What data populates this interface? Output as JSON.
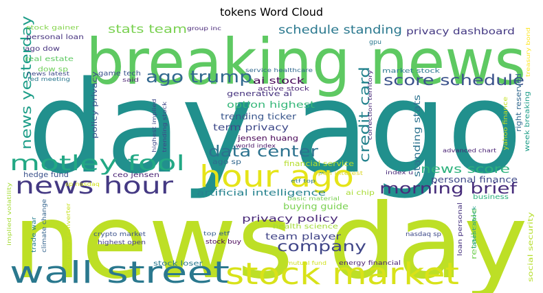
{
  "chart_data": {
    "type": "wordcloud",
    "title": "tokens Word Cloud",
    "colormap": "viridis",
    "background": "#ffffff",
    "words": [
      {
        "text": "news day",
        "weight": 1.0,
        "color": "#bddf26"
      },
      {
        "text": "day ago",
        "weight": 0.95,
        "color": "#21908d"
      },
      {
        "text": "breaking news",
        "weight": 0.62,
        "color": "#5ec962"
      },
      {
        "text": "wall street",
        "weight": 0.33,
        "color": "#2a788e"
      },
      {
        "text": "stock market",
        "weight": 0.33,
        "color": "#d8e219"
      },
      {
        "text": "hour ago",
        "weight": 0.33,
        "color": "#e5e419"
      },
      {
        "text": "news hour",
        "weight": 0.26,
        "color": "#443983"
      },
      {
        "text": "motley fool",
        "weight": 0.23,
        "color": "#22a884"
      },
      {
        "text": "ago trump",
        "weight": 0.18,
        "color": "#31688e"
      },
      {
        "text": "data center",
        "weight": 0.17,
        "color": "#2c728e"
      },
      {
        "text": "morning brief",
        "weight": 0.17,
        "color": "#472d7b"
      },
      {
        "text": "score schedule",
        "weight": 0.16,
        "color": "#3b528b"
      },
      {
        "text": "company",
        "weight": 0.16,
        "color": "#404688"
      },
      {
        "text": "credit card",
        "weight": 0.16,
        "color": "#25838e"
      },
      {
        "text": "news yesterday",
        "weight": 0.15,
        "color": "#1f9e89"
      },
      {
        "text": "stats team",
        "weight": 0.13,
        "color": "#7ad151"
      },
      {
        "text": "schedule standing",
        "weight": 0.13,
        "color": "#2a788e"
      },
      {
        "text": "news score",
        "weight": 0.13,
        "color": "#2db27d"
      },
      {
        "text": "right reserved",
        "weight": 0.07,
        "color": "#31688e"
      },
      {
        "text": "privacy dashboard",
        "weight": 0.1,
        "color": "#443983"
      },
      {
        "text": "privacy policy",
        "weight": 0.1,
        "color": "#482878"
      },
      {
        "text": "option highest",
        "weight": 0.09,
        "color": "#35b779"
      },
      {
        "text": "term privacy",
        "weight": 0.09,
        "color": "#3e4989"
      },
      {
        "text": "team player",
        "weight": 0.09,
        "color": "#414487"
      },
      {
        "text": "personal finance",
        "weight": 0.09,
        "color": "#3e4989"
      },
      {
        "text": "standing stats",
        "weight": 0.08,
        "color": "#2c728e"
      },
      {
        "text": "artificial intelligence",
        "weight": 0.08,
        "color": "#26828e"
      },
      {
        "text": "ai stock",
        "weight": 0.08,
        "color": "#440154"
      },
      {
        "text": "trending ticker",
        "weight": 0.07,
        "color": "#39568c"
      },
      {
        "text": "week breaking",
        "weight": 0.07,
        "color": "#1f9e89"
      },
      {
        "text": "retail sale",
        "weight": 0.07,
        "color": "#73d056"
      },
      {
        "text": "generative ai",
        "weight": 0.06,
        "color": "#46337e"
      },
      {
        "text": "buying guide",
        "weight": 0.06,
        "color": "#7ad151"
      },
      {
        "text": "jensen huang",
        "weight": 0.06,
        "color": "#440154"
      },
      {
        "text": "policy privacy",
        "weight": 0.05,
        "color": "#3b528b"
      },
      {
        "text": "yahoo finance",
        "weight": 0.05,
        "color": "#c2df23"
      },
      {
        "text": "social security",
        "weight": 0.05,
        "color": "#b5de2b"
      },
      {
        "text": "financial service",
        "weight": 0.05,
        "color": "#b5de2b"
      },
      {
        "text": "hedge fund",
        "weight": 0.05,
        "color": "#3b528b"
      },
      {
        "text": "loan personal",
        "weight": 0.05,
        "color": "#46327e"
      },
      {
        "text": "health science",
        "weight": 0.04,
        "color": "#a2da37"
      },
      {
        "text": "game tech",
        "weight": 0.04,
        "color": "#3b528b"
      },
      {
        "text": "ceo jensen",
        "weight": 0.04,
        "color": "#482173"
      },
      {
        "text": "real estate",
        "weight": 0.04,
        "color": "#5ec962"
      },
      {
        "text": "ago dow",
        "weight": 0.04,
        "color": "#46327e"
      },
      {
        "text": "dow sp",
        "weight": 0.04,
        "color": "#6ece58"
      },
      {
        "text": "stock gainer",
        "weight": 0.04,
        "color": "#84d44b"
      },
      {
        "text": "personal loan",
        "weight": 0.04,
        "color": "#46327e"
      },
      {
        "text": "active stock",
        "weight": 0.04,
        "color": "#482173"
      },
      {
        "text": "ago sp",
        "weight": 0.04,
        "color": "#31688e"
      },
      {
        "text": "stock loser",
        "weight": 0.04,
        "color": "#2a788e"
      },
      {
        "text": "crypto market",
        "weight": 0.04,
        "color": "#3b528b"
      },
      {
        "text": "highest open",
        "weight": 0.04,
        "color": "#433e85"
      },
      {
        "text": "climate change",
        "weight": 0.04,
        "color": "#33638d"
      },
      {
        "text": "trade war",
        "weight": 0.04,
        "color": "#277f8e"
      },
      {
        "text": "ai chip",
        "weight": 0.04,
        "color": "#a8db34"
      },
      {
        "text": "business",
        "weight": 0.04,
        "color": "#2db27d"
      },
      {
        "text": "energy financial",
        "weight": 0.04,
        "color": "#481f70"
      },
      {
        "text": "stock buy",
        "weight": 0.04,
        "color": "#440154"
      },
      {
        "text": "nasdaq sp",
        "weight": 0.03,
        "color": "#3e4989"
      },
      {
        "text": "market stock",
        "weight": 0.03,
        "color": "#2a788e"
      },
      {
        "text": "service healthcare",
        "weight": 0.03,
        "color": "#31688e"
      },
      {
        "text": "advanced chart",
        "weight": 0.03,
        "color": "#482173"
      },
      {
        "text": "latest stock",
        "weight": 0.03,
        "color": "#1f9e89"
      },
      {
        "text": "highest implied",
        "weight": 0.03,
        "color": "#3e4989"
      },
      {
        "text": "correction territory",
        "weight": 0.03,
        "color": "#482878"
      },
      {
        "text": "trending stock",
        "weight": 0.03,
        "color": "#3e4989"
      },
      {
        "text": "group inc",
        "weight": 0.03,
        "color": "#482878"
      },
      {
        "text": "treasury bond",
        "weight": 0.03,
        "color": "#fde725"
      },
      {
        "text": "news latest",
        "weight": 0.03,
        "color": "#3e4989"
      },
      {
        "text": "fed meeting",
        "weight": 0.03,
        "color": "#2a788e"
      },
      {
        "text": "implied volatility",
        "weight": 0.03,
        "color": "#a5db36"
      },
      {
        "text": "currency converter",
        "weight": 0.03,
        "color": "#c8e020"
      },
      {
        "text": "mutual fund",
        "weight": 0.03,
        "color": "#d0e11c"
      },
      {
        "text": "top etf",
        "weight": 0.03,
        "color": "#355f8d"
      },
      {
        "text": "basic material",
        "weight": 0.03,
        "color": "#7ad151"
      },
      {
        "text": "open interest",
        "weight": 0.03,
        "color": "#ddd82c"
      },
      {
        "text": "etf top",
        "weight": 0.03,
        "color": "#2a788e"
      },
      {
        "text": "world index",
        "weight": 0.03,
        "color": "#481567"
      },
      {
        "text": "index u",
        "weight": 0.03,
        "color": "#482878"
      },
      {
        "text": "sp nasdaq",
        "weight": 0.03,
        "color": "#d0e11c"
      },
      {
        "text": "said",
        "weight": 0.03,
        "color": "#481f70"
      },
      {
        "text": "gpu",
        "weight": 0.03,
        "color": "#2a788e"
      }
    ]
  }
}
